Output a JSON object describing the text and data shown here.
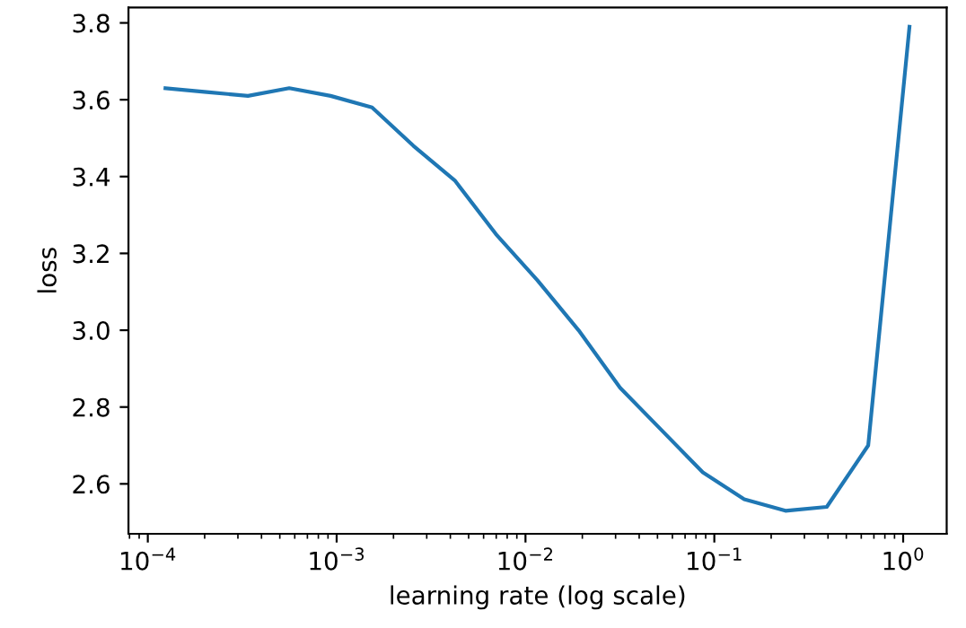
{
  "chart_data": {
    "type": "line",
    "xlabel": "learning rate (log scale)",
    "ylabel": "loss",
    "log": "x",
    "grid": false,
    "x": [
      0.000124,
      0.000205,
      0.000339,
      0.000561,
      0.000929,
      0.00154,
      0.00255,
      0.00422,
      0.00698,
      0.01156,
      0.0191,
      0.0317,
      0.0525,
      0.0869,
      0.144,
      0.238,
      0.394,
      0.653,
      1.08
    ],
    "series": [
      {
        "color": "#1f77b4",
        "values": [
          3.63,
          3.62,
          3.61,
          3.63,
          3.61,
          3.58,
          3.48,
          3.39,
          3.25,
          3.13,
          3.0,
          2.85,
          2.74,
          2.63,
          2.56,
          2.53,
          2.54,
          2.7,
          3.79
        ]
      }
    ],
    "xlim": [
      7.9e-05,
      1.7
    ],
    "ylim": [
      2.47,
      3.84
    ],
    "xticks": [
      {
        "value": 0.0001,
        "label": "10$^{−4}$"
      },
      {
        "value": 0.001,
        "label": "10$^{−3}$"
      },
      {
        "value": 0.01,
        "label": "10$^{−2}$"
      },
      {
        "value": 0.1,
        "label": "10$^{−1}$"
      },
      {
        "value": 1,
        "label": "10$^{0}$"
      }
    ],
    "yticks": [
      {
        "value": 2.6,
        "label": "2.6"
      },
      {
        "value": 2.8,
        "label": "2.8"
      },
      {
        "value": 3.0,
        "label": "3.0"
      },
      {
        "value": 3.2,
        "label": "3.2"
      },
      {
        "value": 3.4,
        "label": "3.4"
      },
      {
        "value": 3.6,
        "label": "3.6"
      },
      {
        "value": 3.8,
        "label": "3.8"
      }
    ]
  }
}
